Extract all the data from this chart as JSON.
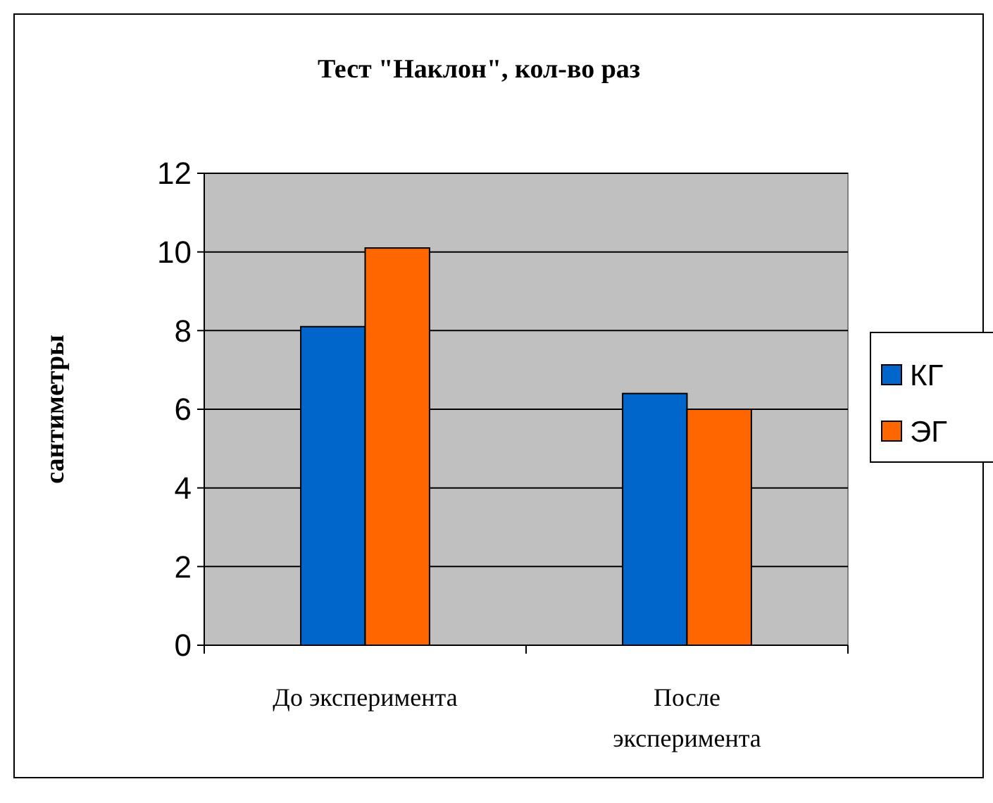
{
  "chart_data": {
    "type": "bar",
    "title": "Тест \"Наклон\", кол-во раз",
    "ylabel": "сантиметры",
    "categories": [
      "До эксперимента",
      "После эксперимента"
    ],
    "series": [
      {
        "name": "КГ",
        "color": "#0066cc",
        "values": [
          8.1,
          6.4
        ]
      },
      {
        "name": "ЭГ",
        "color": "#ff6600",
        "values": [
          10.1,
          6.0
        ]
      }
    ],
    "ylim": [
      0,
      12
    ],
    "yticks": [
      0,
      2,
      4,
      6,
      8,
      10,
      12
    ],
    "grid": "y",
    "legend": "right"
  }
}
